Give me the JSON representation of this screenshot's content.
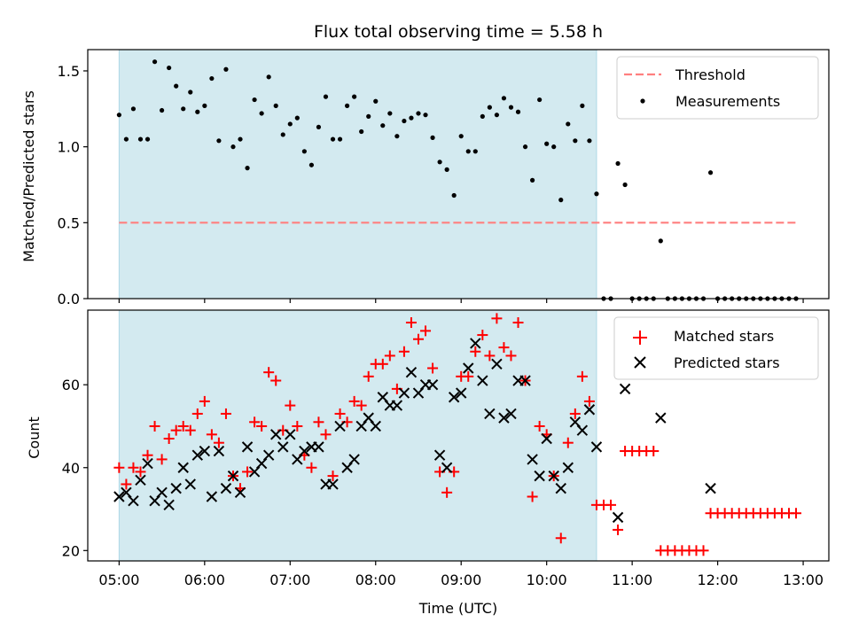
{
  "chart_data": [
    {
      "type": "scatter",
      "title": "Flux total observing time = 5.58 h",
      "xlabel": "",
      "ylabel": "Matched/Predicted stars",
      "ylim": [
        0,
        1.64
      ],
      "yticks": [
        "0.0",
        "0.5",
        "1.0",
        "1.5"
      ],
      "xlim": [
        "04:38",
        "13:18"
      ],
      "shaded_interval": [
        "05:00",
        "10:35"
      ],
      "shade_color": "#d3eaf0",
      "legend_position": "top-right",
      "threshold": {
        "name": "Threshold",
        "value": 0.5,
        "x_range": [
          "05:00",
          "12:55"
        ],
        "color": "#ff7f7f"
      },
      "series": [
        {
          "name": "Measurements",
          "color": "#000000",
          "x": [
            "05:00",
            "05:05",
            "05:10",
            "05:15",
            "05:20",
            "05:25",
            "05:30",
            "05:35",
            "05:40",
            "05:45",
            "05:50",
            "05:55",
            "06:00",
            "06:05",
            "06:10",
            "06:15",
            "06:20",
            "06:25",
            "06:30",
            "06:35",
            "06:40",
            "06:45",
            "06:50",
            "06:55",
            "07:00",
            "07:05",
            "07:10",
            "07:15",
            "07:20",
            "07:25",
            "07:30",
            "07:35",
            "07:40",
            "07:45",
            "07:50",
            "07:55",
            "08:00",
            "08:05",
            "08:10",
            "08:15",
            "08:20",
            "08:25",
            "08:30",
            "08:35",
            "08:40",
            "08:45",
            "08:50",
            "08:55",
            "09:00",
            "09:05",
            "09:10",
            "09:15",
            "09:20",
            "09:25",
            "09:30",
            "09:35",
            "09:40",
            "09:45",
            "09:50",
            "09:55",
            "10:00",
            "10:05",
            "10:10",
            "10:15",
            "10:20",
            "10:25",
            "10:30",
            "10:35",
            "10:40",
            "10:45",
            "10:50",
            "10:55",
            "11:00",
            "11:05",
            "11:10",
            "11:15",
            "11:20",
            "11:25",
            "11:30",
            "11:35",
            "11:40",
            "11:45",
            "11:50",
            "11:55",
            "12:00",
            "12:05",
            "12:10",
            "12:15",
            "12:20",
            "12:25",
            "12:30",
            "12:35",
            "12:40",
            "12:45",
            "12:50",
            "12:55"
          ],
          "y": [
            1.21,
            1.05,
            1.25,
            1.05,
            1.05,
            1.56,
            1.24,
            1.52,
            1.4,
            1.25,
            1.36,
            1.23,
            1.27,
            1.45,
            1.04,
            1.51,
            1.0,
            1.05,
            0.86,
            1.31,
            1.22,
            1.46,
            1.27,
            1.08,
            1.15,
            1.19,
            0.97,
            0.88,
            1.13,
            1.33,
            1.05,
            1.05,
            1.27,
            1.33,
            1.1,
            1.2,
            1.3,
            1.14,
            1.22,
            1.07,
            1.17,
            1.19,
            1.22,
            1.21,
            1.06,
            0.9,
            0.85,
            0.68,
            1.07,
            0.97,
            0.97,
            1.2,
            1.26,
            1.21,
            1.32,
            1.26,
            1.23,
            1.0,
            0.78,
            1.31,
            1.02,
            1.0,
            0.65,
            1.15,
            1.04,
            1.27,
            1.04,
            0.69,
            0.0,
            0.0,
            0.89,
            0.75,
            0.0,
            0.0,
            0.0,
            0.0,
            0.38,
            0.0,
            0.0,
            0.0,
            0.0,
            0.0,
            0.0,
            0.83,
            0.0,
            0.0,
            0.0,
            0.0,
            0.0,
            0.0,
            0.0,
            0.0,
            0.0,
            0.0,
            0.0,
            0.0
          ]
        }
      ]
    },
    {
      "type": "scatter",
      "title": "",
      "xlabel": "Time (UTC)",
      "ylabel": "Count",
      "ylim": [
        17.5,
        78
      ],
      "yticks": [
        "20",
        "40",
        "60"
      ],
      "xlim": [
        "04:38",
        "13:18"
      ],
      "xticks": [
        "05:00",
        "06:00",
        "07:00",
        "08:00",
        "09:00",
        "10:00",
        "11:00",
        "12:00",
        "13:00"
      ],
      "shaded_interval": [
        "05:00",
        "10:35"
      ],
      "shade_color": "#d3eaf0",
      "legend_position": "top-right",
      "series": [
        {
          "name": "Matched stars",
          "marker": "+",
          "color": "#ff0000",
          "x": [
            "05:00",
            "05:05",
            "05:10",
            "05:15",
            "05:20",
            "05:25",
            "05:30",
            "05:35",
            "05:40",
            "05:45",
            "05:50",
            "05:55",
            "06:00",
            "06:05",
            "06:10",
            "06:15",
            "06:20",
            "06:25",
            "06:30",
            "06:35",
            "06:40",
            "06:45",
            "06:50",
            "06:55",
            "07:00",
            "07:05",
            "07:10",
            "07:15",
            "07:20",
            "07:25",
            "07:30",
            "07:35",
            "07:40",
            "07:45",
            "07:50",
            "07:55",
            "08:00",
            "08:05",
            "08:10",
            "08:15",
            "08:20",
            "08:25",
            "08:30",
            "08:35",
            "08:40",
            "08:45",
            "08:50",
            "08:55",
            "09:00",
            "09:05",
            "09:10",
            "09:15",
            "09:20",
            "09:25",
            "09:30",
            "09:35",
            "09:40",
            "09:45",
            "09:50",
            "09:55",
            "10:00",
            "10:05",
            "10:10",
            "10:15",
            "10:20",
            "10:25",
            "10:30",
            "10:35",
            "10:40",
            "10:45",
            "10:50",
            "10:55",
            "11:00",
            "11:05",
            "11:10",
            "11:15",
            "11:20",
            "11:25",
            "11:30",
            "11:35",
            "11:40",
            "11:45",
            "11:50",
            "11:55",
            "12:00",
            "12:05",
            "12:10",
            "12:15",
            "12:20",
            "12:25",
            "12:30",
            "12:35",
            "12:40",
            "12:45",
            "12:50",
            "12:55"
          ],
          "y": [
            40,
            36,
            40,
            39,
            43,
            50,
            42,
            47,
            49,
            50,
            49,
            53,
            56,
            48,
            46,
            53,
            38,
            35,
            39,
            51,
            50,
            63,
            61,
            49,
            55,
            50,
            43,
            40,
            51,
            48,
            38,
            53,
            51,
            56,
            55,
            62,
            65,
            65,
            67,
            59,
            68,
            75,
            71,
            73,
            64,
            39,
            34,
            39,
            62,
            62,
            68,
            72,
            67,
            76,
            69,
            67,
            75,
            61,
            33,
            50,
            48,
            38,
            23,
            46,
            53,
            62,
            56,
            31,
            31,
            31,
            25,
            44,
            44,
            44,
            44,
            44,
            20,
            20,
            20,
            20,
            20,
            20,
            20,
            29,
            29,
            29,
            29,
            29,
            29,
            29,
            29,
            29,
            29,
            29,
            29,
            29
          ]
        },
        {
          "name": "Predicted stars",
          "marker": "x",
          "color": "#000000",
          "x": [
            "05:00",
            "05:05",
            "05:10",
            "05:15",
            "05:20",
            "05:25",
            "05:30",
            "05:35",
            "05:40",
            "05:45",
            "05:50",
            "05:55",
            "06:00",
            "06:05",
            "06:10",
            "06:15",
            "06:20",
            "06:25",
            "06:30",
            "06:35",
            "06:40",
            "06:45",
            "06:50",
            "06:55",
            "07:00",
            "07:05",
            "07:10",
            "07:15",
            "07:20",
            "07:25",
            "07:30",
            "07:35",
            "07:40",
            "07:45",
            "07:50",
            "07:55",
            "08:00",
            "08:05",
            "08:10",
            "08:15",
            "08:20",
            "08:25",
            "08:30",
            "08:35",
            "08:40",
            "08:45",
            "08:50",
            "08:55",
            "09:00",
            "09:05",
            "09:10",
            "09:15",
            "09:20",
            "09:25",
            "09:30",
            "09:35",
            "09:40",
            "09:45",
            "09:50",
            "09:55",
            "10:00",
            "10:05",
            "10:10",
            "10:15",
            "10:20",
            "10:25",
            "10:30",
            "10:35",
            "10:50",
            "10:55",
            "11:20",
            "11:55"
          ],
          "y": [
            33,
            34,
            32,
            37,
            41,
            32,
            34,
            31,
            35,
            40,
            36,
            43,
            44,
            33,
            44,
            35,
            38,
            34,
            45,
            39,
            41,
            43,
            48,
            45,
            48,
            42,
            44,
            45,
            45,
            36,
            36,
            50,
            40,
            42,
            50,
            52,
            50,
            57,
            55,
            55,
            58,
            63,
            58,
            60,
            60,
            43,
            40,
            57,
            58,
            64,
            70,
            61,
            53,
            65,
            52,
            53,
            61,
            61,
            42,
            38,
            47,
            38,
            35,
            40,
            51,
            49,
            54,
            45,
            28,
            59,
            52,
            35
          ]
        }
      ]
    }
  ]
}
